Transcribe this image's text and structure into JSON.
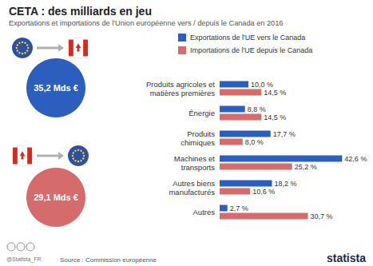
{
  "chart_data": {
    "type": "bar",
    "orientation": "horizontal",
    "title": "CETA : des milliards en jeu",
    "subtitle": "Exportations et importations de l'Union européenne vers / depuis le Canada en 2016",
    "categories": [
      "Produits agricoles et\nmatières premières",
      "Énergie",
      "Produits\nchimiques",
      "Machines et\ntransports",
      "Autres biens\nmanufacturés",
      "Autres"
    ],
    "series": [
      {
        "name": "Exportations de l'UE vers le Canada",
        "color": "#2c5fbd",
        "values": [
          10.0,
          8.8,
          17.7,
          42.6,
          18.2,
          2.7
        ],
        "value_labels": [
          "10,0 %",
          "8,8 %",
          "17,7 %",
          "42,6 %",
          "18,2 %",
          "2,7 %"
        ],
        "total": 35.2,
        "total_label": "35,2 Mds €"
      },
      {
        "name": "Importations de l'UE depuis le Canada",
        "color": "#d56b6b",
        "values": [
          14.5,
          14.5,
          8.0,
          25.2,
          10.6,
          30.7
        ],
        "value_labels": [
          "14,5 %",
          "14,5 %",
          "8,0 %",
          "25,2 %",
          "10,6 %",
          "30,7 %"
        ],
        "total": 29.1,
        "total_label": "29,1 Mds €"
      }
    ],
    "xlim": [
      0,
      45
    ],
    "grid": false,
    "legend": "top",
    "data_labels": true,
    "tick_labels": "y",
    "source": "Source : Commission européenne",
    "credit": "@Statista_FR",
    "logo": "statista"
  }
}
